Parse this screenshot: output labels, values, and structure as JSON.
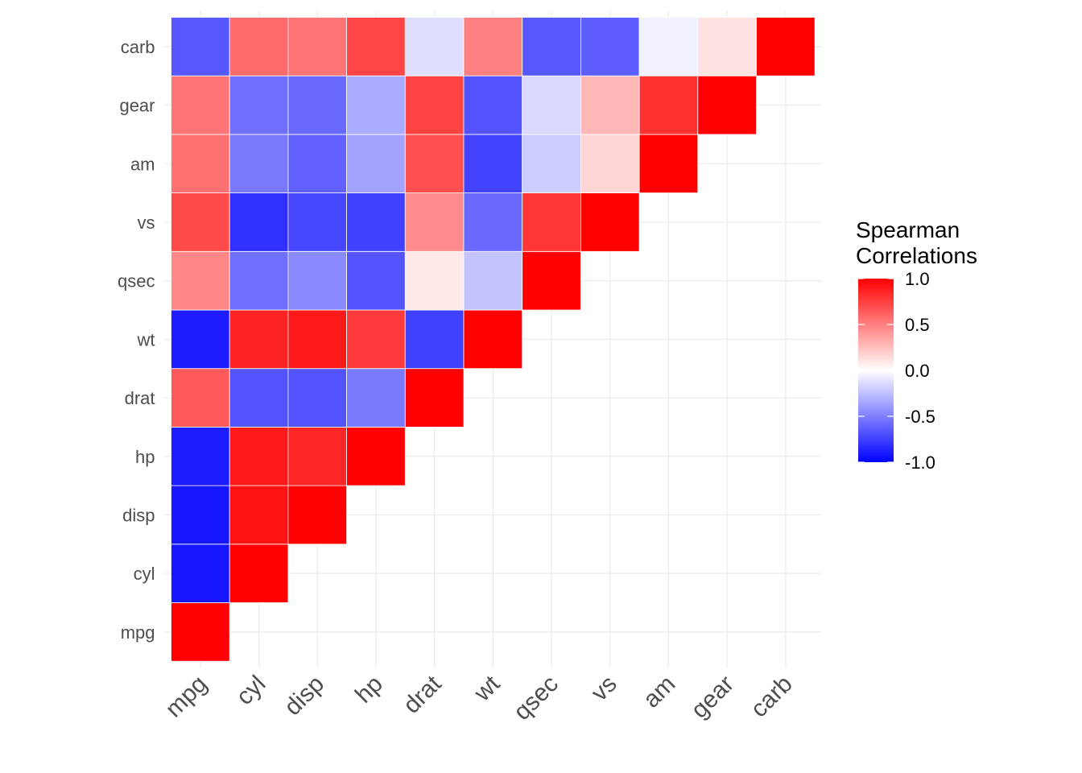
{
  "chart_data": {
    "type": "heatmap",
    "variables": [
      "mpg",
      "cyl",
      "disp",
      "hp",
      "drat",
      "wt",
      "qsec",
      "vs",
      "am",
      "gear",
      "carb"
    ],
    "matrix_shape": "lower-left triangle (x index <= y index)",
    "values": [
      [
        1.0
      ],
      [
        -0.91,
        1.0
      ],
      [
        -0.91,
        0.93,
        1.0
      ],
      [
        -0.89,
        0.9,
        0.85,
        1.0
      ],
      [
        0.65,
        -0.68,
        -0.68,
        -0.52,
        1.0
      ],
      [
        -0.89,
        0.86,
        0.9,
        0.77,
        -0.75,
        1.0
      ],
      [
        0.47,
        -0.57,
        -0.46,
        -0.67,
        0.09,
        -0.23,
        1.0
      ],
      [
        0.71,
        -0.81,
        -0.72,
        -0.75,
        0.45,
        -0.59,
        0.79,
        1.0
      ],
      [
        0.56,
        -0.52,
        -0.62,
        -0.36,
        0.69,
        -0.74,
        -0.2,
        0.17,
        1.0
      ],
      [
        0.54,
        -0.56,
        -0.59,
        -0.33,
        0.74,
        -0.68,
        -0.15,
        0.28,
        0.81,
        1.0
      ],
      [
        -0.66,
        0.58,
        0.54,
        0.73,
        -0.13,
        0.5,
        -0.66,
        -0.63,
        -0.06,
        0.11,
        1.0
      ]
    ],
    "legend": {
      "title_lines": [
        "Spearman",
        "Correlations"
      ],
      "ticks": [
        "1.0",
        "0.5",
        "0.0",
        "-0.5",
        "-1.0"
      ],
      "tick_values": [
        1.0,
        0.5,
        0.0,
        -0.5,
        -1.0
      ],
      "range": [
        -1.0,
        1.0
      ],
      "low_color": "#0000FF",
      "mid_color": "#FFFFFF",
      "high_color": "#FF0000"
    },
    "grid": true
  }
}
